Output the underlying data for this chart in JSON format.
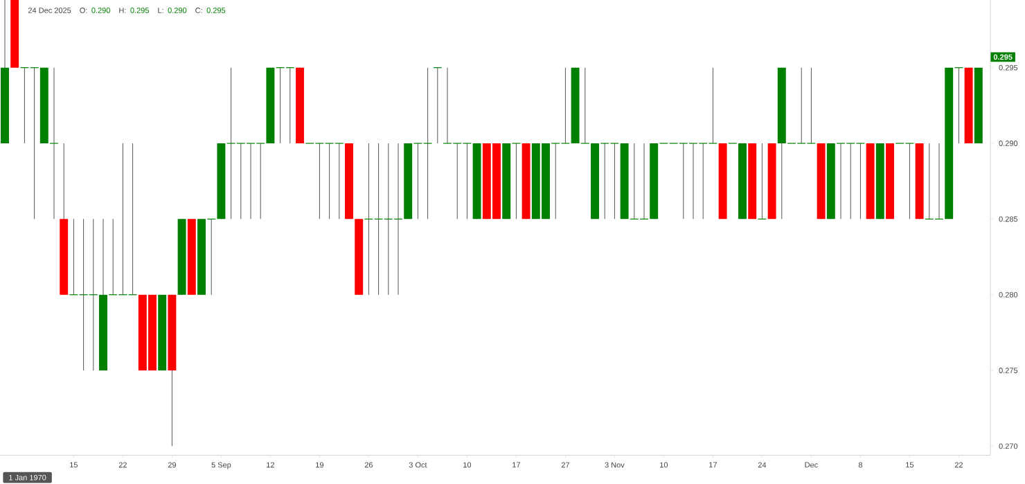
{
  "chart_data": {
    "type": "candlestick",
    "title": "24 Dec 2025",
    "annotations": [
      "O:",
      "0.290",
      "H:",
      "0.295",
      "L:",
      "0.290",
      "C:",
      "0.295",
      "1 Jan 1970",
      "0.295"
    ],
    "categories": [
      null,
      null,
      null,
      null,
      null,
      null,
      null,
      "15",
      null,
      null,
      null,
      null,
      "22",
      null,
      null,
      null,
      null,
      "29",
      null,
      null,
      null,
      null,
      "5 Sep",
      null,
      null,
      null,
      null,
      "12",
      null,
      null,
      null,
      null,
      "19",
      null,
      null,
      null,
      null,
      "26",
      null,
      null,
      null,
      null,
      "3 Oct",
      null,
      null,
      null,
      null,
      "10",
      null,
      null,
      null,
      null,
      "17",
      null,
      null,
      null,
      null,
      "27",
      null,
      null,
      null,
      null,
      "3 Nov",
      null,
      null,
      null,
      null,
      "10",
      null,
      null,
      null,
      null,
      "17",
      null,
      null,
      null,
      null,
      "24",
      null,
      null,
      null,
      null,
      "Dec",
      null,
      null,
      null,
      null,
      "8",
      null,
      null,
      null,
      null,
      "15",
      null,
      null,
      null,
      null,
      "22",
      null,
      null
    ],
    "ohlc": [
      [
        0.29,
        0.3,
        0.29,
        0.295
      ],
      [
        0.3,
        0.3,
        0.295,
        0.295
      ],
      [
        0.295,
        0.295,
        0.29,
        0.295
      ],
      [
        0.295,
        0.295,
        0.285,
        0.295
      ],
      [
        0.29,
        0.295,
        0.29,
        0.295
      ],
      [
        0.29,
        0.295,
        0.285,
        0.29
      ],
      [
        0.285,
        0.29,
        0.28,
        0.28
      ],
      [
        0.28,
        0.285,
        0.28,
        0.28
      ],
      [
        0.28,
        0.285,
        0.275,
        0.28
      ],
      [
        0.28,
        0.285,
        0.275,
        0.28
      ],
      [
        0.275,
        0.285,
        0.275,
        0.28
      ],
      [
        0.28,
        0.285,
        0.28,
        0.28
      ],
      [
        0.28,
        0.29,
        0.28,
        0.28
      ],
      [
        0.28,
        0.29,
        0.28,
        0.28
      ],
      [
        0.28,
        0.28,
        0.275,
        0.275
      ],
      [
        0.28,
        0.28,
        0.275,
        0.275
      ],
      [
        0.275,
        0.28,
        0.275,
        0.28
      ],
      [
        0.28,
        0.28,
        0.27,
        0.275
      ],
      [
        0.28,
        0.285,
        0.28,
        0.285
      ],
      [
        0.285,
        0.285,
        0.28,
        0.28
      ],
      [
        0.28,
        0.285,
        0.28,
        0.285
      ],
      [
        0.285,
        0.285,
        0.28,
        0.285
      ],
      [
        0.285,
        0.29,
        0.285,
        0.29
      ],
      [
        0.29,
        0.295,
        0.285,
        0.29
      ],
      [
        0.29,
        0.29,
        0.285,
        0.29
      ],
      [
        0.29,
        0.29,
        0.285,
        0.29
      ],
      [
        0.29,
        0.29,
        0.285,
        0.29
      ],
      [
        0.29,
        0.295,
        0.29,
        0.295
      ],
      [
        0.295,
        0.295,
        0.29,
        0.295
      ],
      [
        0.295,
        0.295,
        0.29,
        0.295
      ],
      [
        0.295,
        0.295,
        0.29,
        0.29
      ],
      [
        0.29,
        0.29,
        0.29,
        0.29
      ],
      [
        0.29,
        0.29,
        0.285,
        0.29
      ],
      [
        0.29,
        0.29,
        0.285,
        0.29
      ],
      [
        0.29,
        0.29,
        0.285,
        0.29
      ],
      [
        0.29,
        0.29,
        0.285,
        0.285
      ],
      [
        0.285,
        0.285,
        0.28,
        0.28
      ],
      [
        0.285,
        0.29,
        0.28,
        0.285
      ],
      [
        0.285,
        0.29,
        0.28,
        0.285
      ],
      [
        0.285,
        0.29,
        0.28,
        0.285
      ],
      [
        0.285,
        0.29,
        0.28,
        0.285
      ],
      [
        0.285,
        0.29,
        0.285,
        0.29
      ],
      [
        0.29,
        0.29,
        0.285,
        0.29
      ],
      [
        0.29,
        0.295,
        0.285,
        0.29
      ],
      [
        0.295,
        0.295,
        0.29,
        0.295
      ],
      [
        0.29,
        0.295,
        0.29,
        0.29
      ],
      [
        0.29,
        0.29,
        0.285,
        0.29
      ],
      [
        0.29,
        0.29,
        0.285,
        0.29
      ],
      [
        0.285,
        0.29,
        0.285,
        0.29
      ],
      [
        0.29,
        0.29,
        0.285,
        0.285
      ],
      [
        0.29,
        0.29,
        0.285,
        0.285
      ],
      [
        0.285,
        0.29,
        0.285,
        0.29
      ],
      [
        0.29,
        0.29,
        0.285,
        0.29
      ],
      [
        0.29,
        0.29,
        0.285,
        0.285
      ],
      [
        0.285,
        0.29,
        0.285,
        0.29
      ],
      [
        0.285,
        0.29,
        0.285,
        0.29
      ],
      [
        0.29,
        0.29,
        0.285,
        0.29
      ],
      [
        0.29,
        0.295,
        0.29,
        0.29
      ],
      [
        0.29,
        0.295,
        0.29,
        0.295
      ],
      [
        0.29,
        0.295,
        0.29,
        0.29
      ],
      [
        0.285,
        0.29,
        0.285,
        0.29
      ],
      [
        0.29,
        0.29,
        0.285,
        0.29
      ],
      [
        0.29,
        0.29,
        0.285,
        0.29
      ],
      [
        0.285,
        0.29,
        0.285,
        0.29
      ],
      [
        0.285,
        0.29,
        0.285,
        0.285
      ],
      [
        0.285,
        0.29,
        0.285,
        0.285
      ],
      [
        0.285,
        0.29,
        0.285,
        0.29
      ],
      [
        0.29,
        0.29,
        0.29,
        0.29
      ],
      [
        0.29,
        0.29,
        0.29,
        0.29
      ],
      [
        0.29,
        0.29,
        0.285,
        0.29
      ],
      [
        0.29,
        0.29,
        0.285,
        0.29
      ],
      [
        0.29,
        0.29,
        0.285,
        0.29
      ],
      [
        0.29,
        0.295,
        0.29,
        0.29
      ],
      [
        0.29,
        0.29,
        0.285,
        0.285
      ],
      [
        0.29,
        0.29,
        0.29,
        0.29
      ],
      [
        0.285,
        0.29,
        0.285,
        0.29
      ],
      [
        0.29,
        0.29,
        0.285,
        0.285
      ],
      [
        0.285,
        0.29,
        0.285,
        0.285
      ],
      [
        0.29,
        0.29,
        0.285,
        0.285
      ],
      [
        0.29,
        0.295,
        0.285,
        0.295
      ],
      [
        0.29,
        0.29,
        0.29,
        0.29
      ],
      [
        0.29,
        0.295,
        0.29,
        0.29
      ],
      [
        0.29,
        0.295,
        0.29,
        0.29
      ],
      [
        0.29,
        0.29,
        0.285,
        0.285
      ],
      [
        0.285,
        0.29,
        0.285,
        0.29
      ],
      [
        0.29,
        0.29,
        0.285,
        0.29
      ],
      [
        0.29,
        0.29,
        0.285,
        0.29
      ],
      [
        0.29,
        0.29,
        0.285,
        0.29
      ],
      [
        0.29,
        0.29,
        0.285,
        0.285
      ],
      [
        0.285,
        0.29,
        0.285,
        0.29
      ],
      [
        0.29,
        0.29,
        0.285,
        0.285
      ],
      [
        0.29,
        0.29,
        0.29,
        0.29
      ],
      [
        0.29,
        0.29,
        0.285,
        0.29
      ],
      [
        0.29,
        0.29,
        0.285,
        0.285
      ],
      [
        0.285,
        0.29,
        0.285,
        0.285
      ],
      [
        0.285,
        0.29,
        0.285,
        0.285
      ],
      [
        0.285,
        0.295,
        0.285,
        0.295
      ],
      [
        0.295,
        0.295,
        0.29,
        0.295
      ],
      [
        0.295,
        0.295,
        0.29,
        0.29
      ],
      [
        0.29,
        0.295,
        0.29,
        0.295
      ]
    ],
    "colors": [
      "#008000",
      "#ff0000",
      "#008000",
      "#008000",
      "#008000",
      "#008000",
      "#ff0000",
      "#008000",
      "#008000",
      "#008000",
      "#008000",
      "#008000",
      "#008000",
      "#008000",
      "#ff0000",
      "#ff0000",
      "#008000",
      "#ff0000",
      "#008000",
      "#ff0000",
      "#008000",
      "#008000",
      "#008000",
      "#008000",
      "#008000",
      "#008000",
      "#008000",
      "#008000",
      "#008000",
      "#008000",
      "#ff0000",
      "#008000",
      "#008000",
      "#008000",
      "#008000",
      "#ff0000",
      "#ff0000",
      "#008000",
      "#008000",
      "#008000",
      "#008000",
      "#008000",
      "#008000",
      "#008000",
      "#008000",
      "#008000",
      "#008000",
      "#008000",
      "#008000",
      "#ff0000",
      "#ff0000",
      "#008000",
      "#008000",
      "#ff0000",
      "#008000",
      "#008000",
      "#008000",
      "#008000",
      "#008000",
      "#008000",
      "#008000",
      "#008000",
      "#008000",
      "#008000",
      "#008000",
      "#008000",
      "#008000",
      "#008000",
      "#008000",
      "#008000",
      "#008000",
      "#008000",
      "#008000",
      "#ff0000",
      "#008000",
      "#008000",
      "#ff0000",
      "#008000",
      "#ff0000",
      "#008000",
      "#008000",
      "#008000",
      "#008000",
      "#ff0000",
      "#008000",
      "#008000",
      "#008000",
      "#008000",
      "#ff0000",
      "#008000",
      "#ff0000",
      "#008000",
      "#008000",
      "#ff0000",
      "#008000",
      "#008000",
      "#008000",
      "#008000",
      "#ff0000",
      "#008000"
    ],
    "ylim": [
      0.2694,
      0.3005
    ],
    "yticks": [
      {
        "value": 0.27,
        "label": "0.270"
      },
      {
        "value": 0.275,
        "label": "0.275"
      },
      {
        "value": 0.28,
        "label": "0.280"
      },
      {
        "value": 0.285,
        "label": "0.285"
      },
      {
        "value": 0.29,
        "label": "0.290"
      },
      {
        "value": 0.295,
        "label": "0.295"
      }
    ]
  }
}
